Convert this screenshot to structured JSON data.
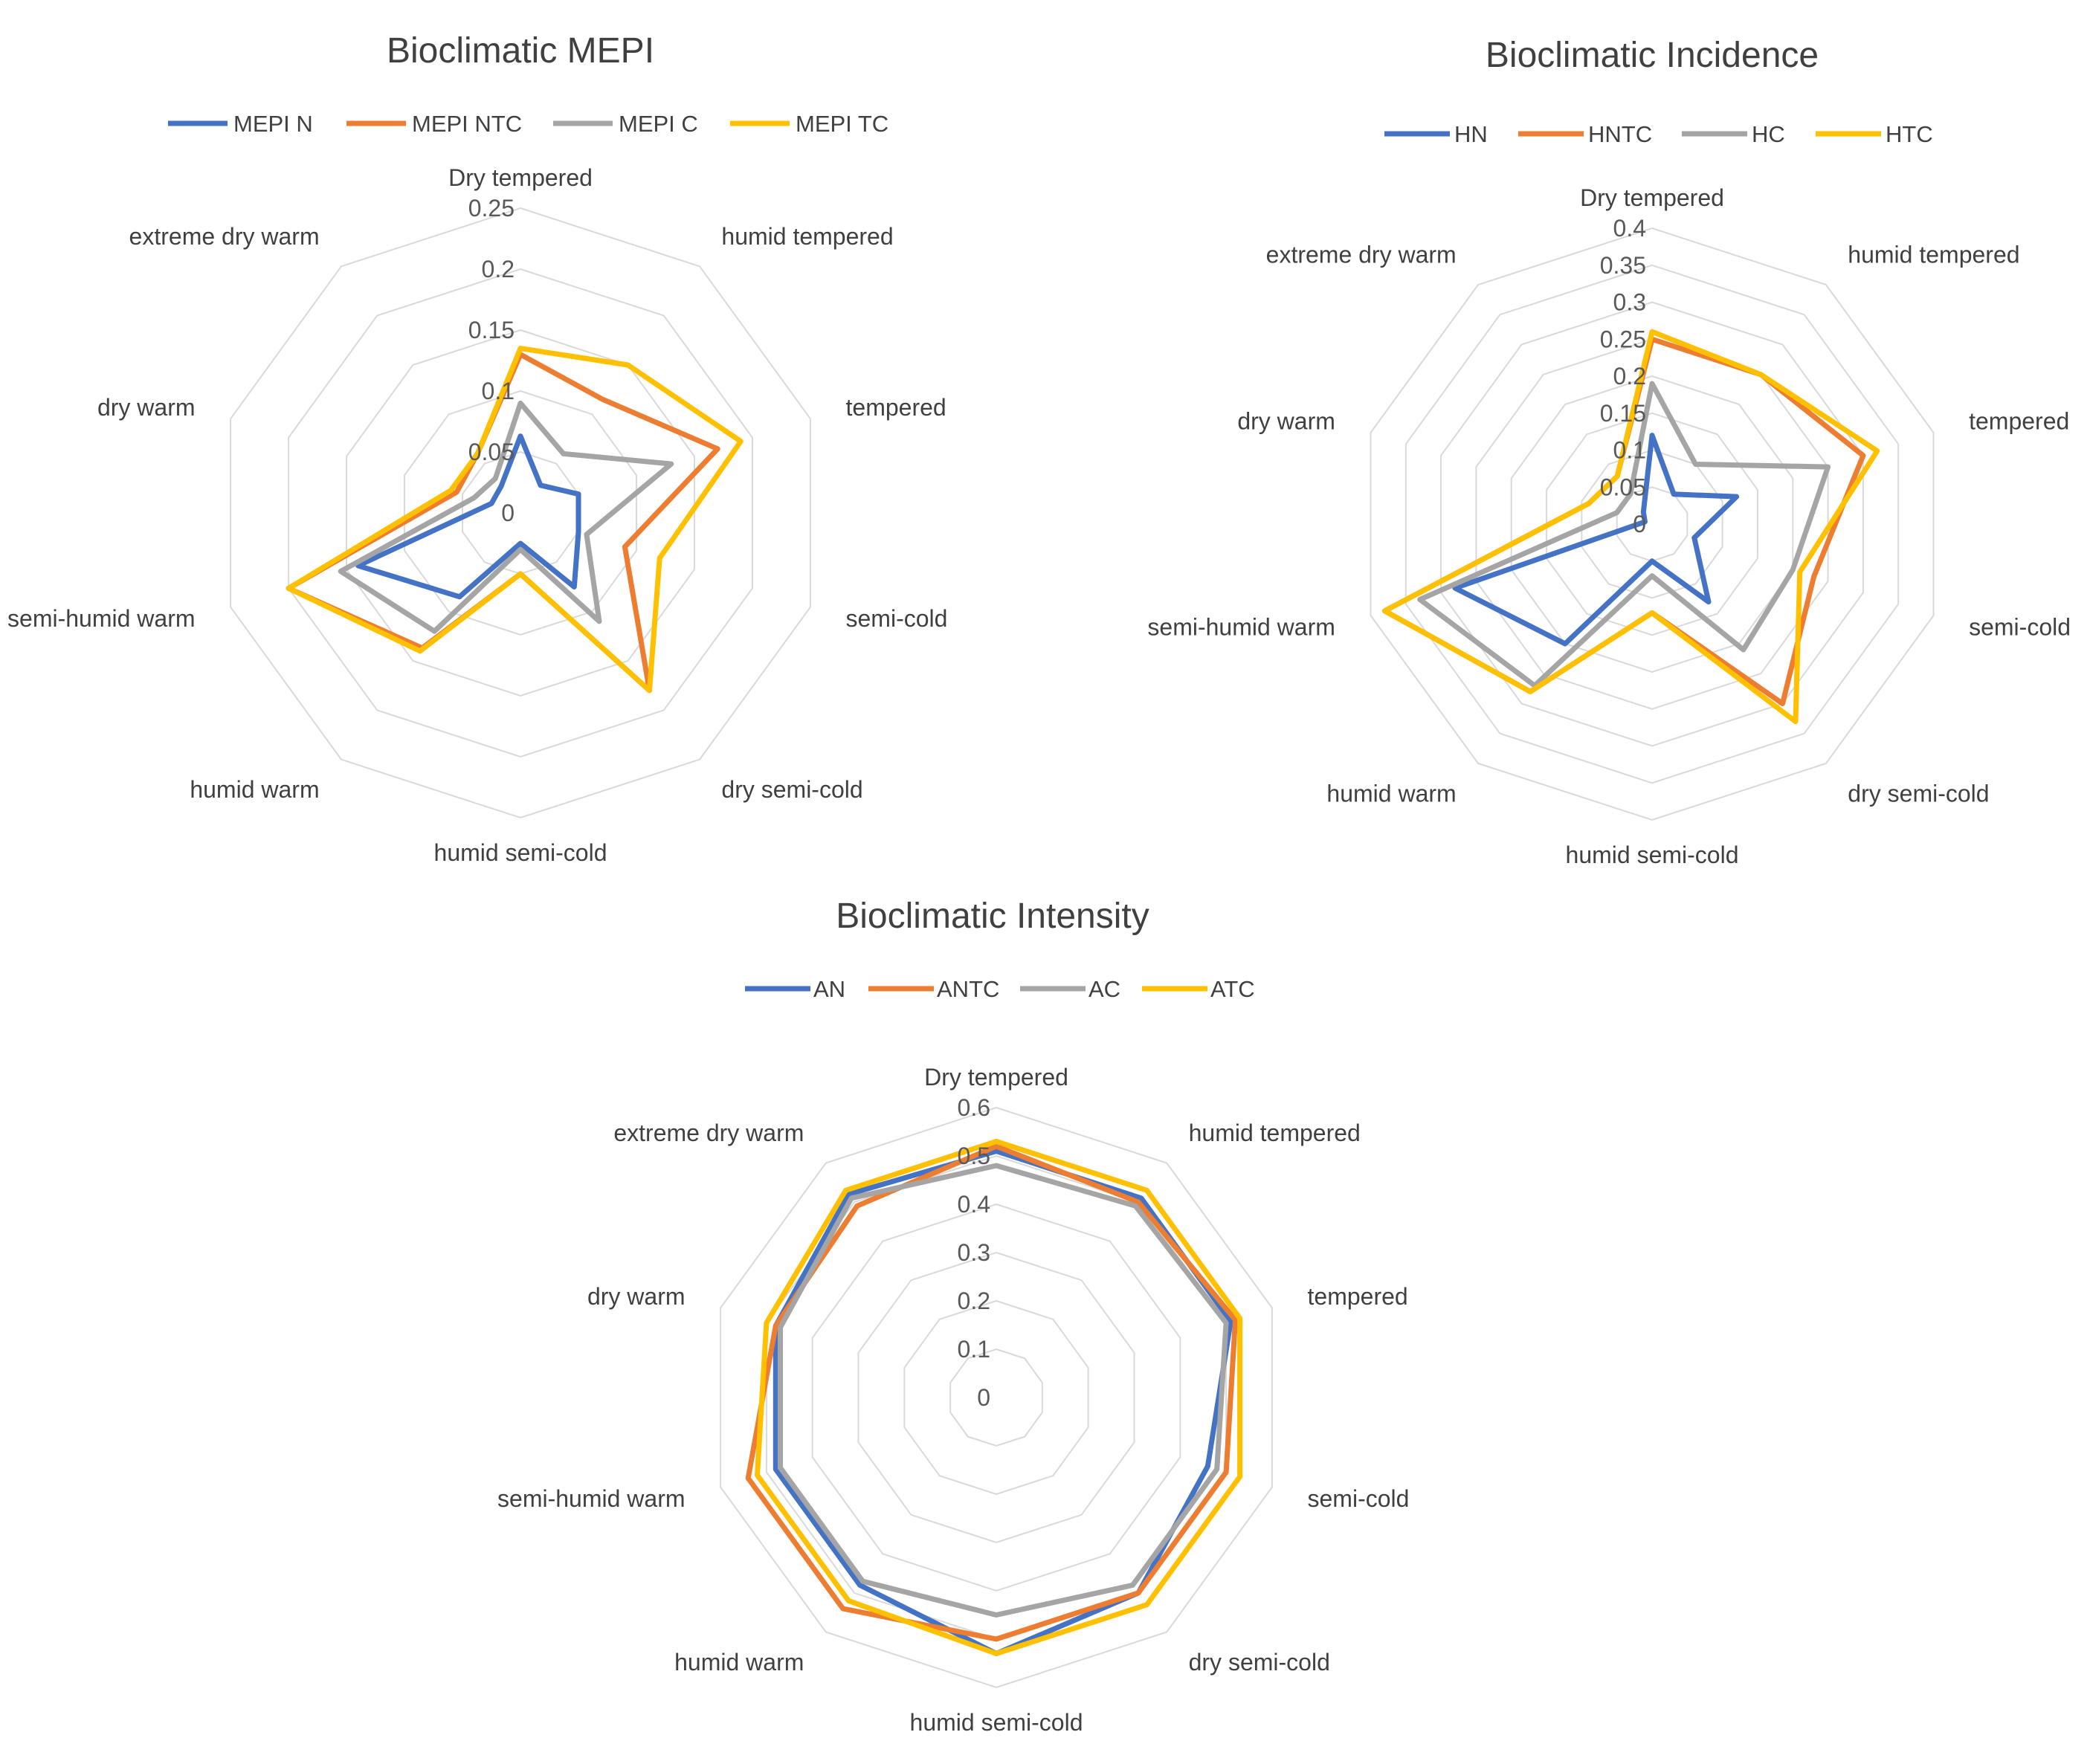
{
  "colors": {
    "blue": "#4472C4",
    "orange": "#ED7D31",
    "gray": "#A5A5A5",
    "yellow": "#FFC000",
    "grid": "#d9d9d9"
  },
  "chart_data": [
    {
      "type": "radar",
      "title": "Bioclimatic MEPI",
      "legend": "top",
      "rmax": 0.25,
      "ticks": [
        "0",
        "0.05",
        "0.1",
        "0.15",
        "0.2",
        "0.25"
      ],
      "tick_values": [
        0,
        0.05,
        0.1,
        0.15,
        0.2,
        0.25
      ],
      "categories": [
        "Dry tempered",
        "humid tempered",
        "tempered",
        "semi-cold",
        "dry semi-cold",
        "humid semi-cold",
        "humid warm",
        "semi-humid warm",
        "dry warm",
        "extreme dry warm"
      ],
      "series": [
        {
          "name": "MEPI N",
          "color": "#4472C4",
          "values": [
            0.063,
            0.028,
            0.05,
            0.05,
            0.075,
            0.025,
            0.085,
            0.14,
            0.025,
            0.027
          ]
        },
        {
          "name": "MEPI NTC",
          "color": "#ED7D31",
          "values": [
            0.13,
            0.115,
            0.17,
            0.09,
            0.18,
            0.05,
            0.137,
            0.2,
            0.055,
            0.06
          ]
        },
        {
          "name": "MEPI C",
          "color": "#A5A5A5",
          "values": [
            0.09,
            0.06,
            0.13,
            0.057,
            0.11,
            0.03,
            0.12,
            0.155,
            0.04,
            0.035
          ]
        },
        {
          "name": "MEPI TC",
          "color": "#FFC000",
          "values": [
            0.135,
            0.15,
            0.19,
            0.12,
            0.18,
            0.05,
            0.14,
            0.2,
            0.06,
            0.06
          ]
        }
      ]
    },
    {
      "type": "radar",
      "title": "Bioclimatic Incidence",
      "legend": "top",
      "rmax": 0.4,
      "ticks": [
        "0",
        "0.05",
        "0.1",
        "0.15",
        "0.2",
        "0.25",
        "0.3",
        "0.35",
        "0.4"
      ],
      "tick_values": [
        0,
        0.05,
        0.1,
        0.15,
        0.2,
        0.25,
        0.3,
        0.35,
        0.4
      ],
      "categories": [
        "Dry tempered",
        "humid tempered",
        "tempered",
        "semi-cold",
        "dry semi-cold",
        "humid semi-cold",
        "humid warm",
        "semi-humid warm",
        "dry warm",
        "extreme dry warm"
      ],
      "series": [
        {
          "name": "HN",
          "color": "#4472C4",
          "values": [
            0.12,
            0.05,
            0.12,
            0.06,
            0.13,
            0.05,
            0.2,
            0.28,
            0.01,
            0.02
          ]
        },
        {
          "name": "HNTC",
          "color": "#ED7D31",
          "values": [
            0.25,
            0.25,
            0.3,
            0.23,
            0.3,
            0.12,
            0.28,
            0.38,
            0.09,
            0.08
          ]
        },
        {
          "name": "HC",
          "color": "#A5A5A5",
          "values": [
            0.19,
            0.1,
            0.25,
            0.2,
            0.21,
            0.07,
            0.27,
            0.33,
            0.05,
            0.05
          ]
        },
        {
          "name": "HTC",
          "color": "#FFC000",
          "values": [
            0.26,
            0.25,
            0.32,
            0.21,
            0.33,
            0.12,
            0.28,
            0.38,
            0.09,
            0.08
          ]
        }
      ]
    },
    {
      "type": "radar",
      "title": "Bioclimatic Intensity",
      "legend": "top",
      "rmax": 0.6,
      "ticks": [
        "0",
        "0.1",
        "0.2",
        "0.3",
        "0.4",
        "0.5",
        "0.6"
      ],
      "tick_values": [
        0,
        0.1,
        0.2,
        0.3,
        0.4,
        0.5,
        0.6
      ],
      "categories": [
        "Dry tempered",
        "humid tempered",
        "tempered",
        "semi-cold",
        "dry semi-cold",
        "humid semi-cold",
        "humid warm",
        "semi-humid warm",
        "dry warm",
        "extreme dry warm"
      ],
      "series": [
        {
          "name": "AN",
          "color": "#4472C4",
          "values": [
            0.51,
            0.51,
            0.51,
            0.46,
            0.5,
            0.53,
            0.48,
            0.48,
            0.48,
            0.52
          ]
        },
        {
          "name": "ANTC",
          "color": "#ED7D31",
          "values": [
            0.52,
            0.5,
            0.52,
            0.5,
            0.5,
            0.5,
            0.54,
            0.54,
            0.48,
            0.49
          ]
        },
        {
          "name": "AC",
          "color": "#A5A5A5",
          "values": [
            0.48,
            0.49,
            0.5,
            0.48,
            0.48,
            0.45,
            0.47,
            0.47,
            0.47,
            0.51
          ]
        },
        {
          "name": "ATC",
          "color": "#FFC000",
          "values": [
            0.53,
            0.53,
            0.53,
            0.53,
            0.53,
            0.53,
            0.52,
            0.52,
            0.5,
            0.53
          ]
        }
      ]
    }
  ]
}
